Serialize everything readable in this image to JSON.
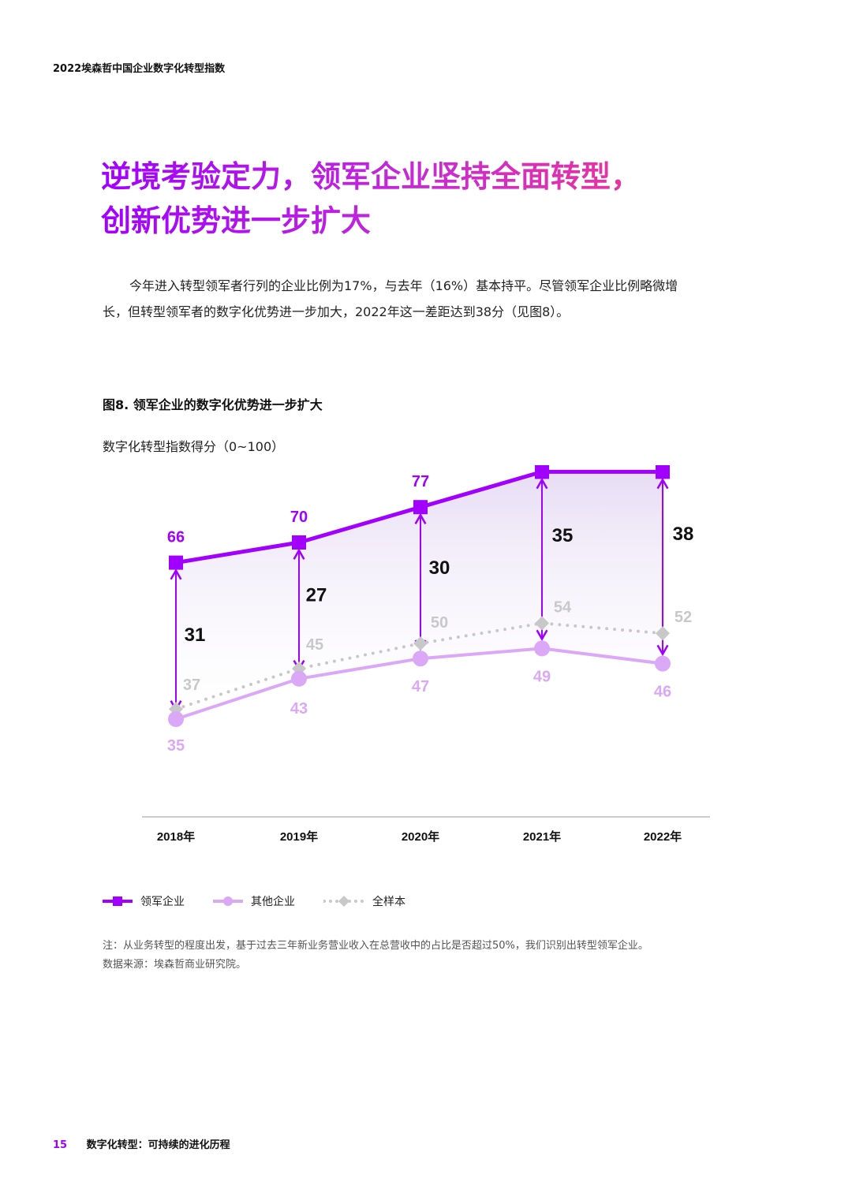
{
  "header": {
    "report_title": "2022埃森哲中国企业数字化转型指数"
  },
  "headline": {
    "line1": "逆境考验定力，领军企业坚持全面转型，",
    "line2": "创新优势进一步扩大"
  },
  "intro_text": "今年进入转型领军者行列的企业比例为17%，与去年（16%）基本持平。尽管领军企业比例略微增长，但转型领军者的数字化优势进一步加大，2022年这一差距达到38分（见图8）。",
  "figure": {
    "title": "图8. 领军企业的数字化优势进一步扩大",
    "axis_caption": "数字化转型指数得分（0~100）"
  },
  "chart_data": {
    "type": "line",
    "categories": [
      "2018年",
      "2019年",
      "2020年",
      "2021年",
      "2022年"
    ],
    "series": [
      {
        "name": "领军企业",
        "values": [
          66,
          70,
          77,
          84,
          84
        ],
        "color": "#a100ff",
        "marker": "square"
      },
      {
        "name": "其他企业",
        "values": [
          35,
          43,
          47,
          49,
          46
        ],
        "color": "#dba7f7",
        "marker": "circle"
      },
      {
        "name": "全样本",
        "values": [
          37,
          45,
          50,
          54,
          52
        ],
        "color": "#c8c8c8",
        "marker": "diamond",
        "style": "dotted"
      }
    ],
    "gaps": [
      31,
      27,
      30,
      35,
      38
    ],
    "colors": {
      "gap_arrow": "#a100ff",
      "gap_label": "#111111",
      "area_fill": "#ece6f6"
    }
  },
  "legend": {
    "items": [
      {
        "label": "领军企业"
      },
      {
        "label": "其他企业"
      },
      {
        "label": "全样本"
      }
    ]
  },
  "notes": {
    "note": "注：从业务转型的程度出发，基于过去三年新业务营业收入在总营收中的占比是否超过50%，我们识别出转型领军企业。",
    "source": "数据来源：埃森哲商业研究院。"
  },
  "footer": {
    "page_number": "15",
    "section_title": "数字化转型：可持续的进化历程"
  }
}
